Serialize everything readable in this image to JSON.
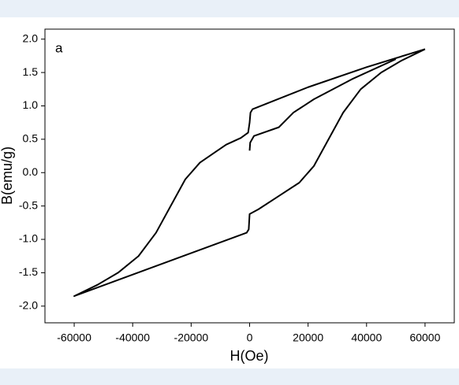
{
  "chart_data": {
    "type": "line",
    "annotation": "a",
    "x_label": "H(Oe)",
    "y_label": "B(emu/g)",
    "xlim": [
      -70000,
      70000
    ],
    "ylim": [
      -2.25,
      2.15
    ],
    "xticks": [
      -60000,
      -40000,
      -20000,
      0,
      20000,
      40000,
      60000
    ],
    "yticks": [
      {
        "value": 2.0,
        "label": "2.0"
      },
      {
        "value": 1.5,
        "label": "1.5"
      },
      {
        "value": 1.0,
        "label": "1.0"
      },
      {
        "value": 0.5,
        "label": "0.5"
      },
      {
        "value": 0.0,
        "label": "0.0"
      },
      {
        "value": -0.5,
        "label": "-0.5"
      },
      {
        "value": -1.0,
        "label": "-1.0"
      },
      {
        "value": -1.5,
        "label": "-1.5"
      },
      {
        "value": -2.0,
        "label": "-2.0"
      }
    ],
    "series": [
      {
        "color": "#000000",
        "x": [
          60000,
          40000,
          20000,
          5000,
          1000,
          300,
          0,
          -500,
          -3000,
          -8000,
          -12000,
          -17000,
          -22000,
          -27000,
          -32000,
          -38000,
          -45000,
          -52000,
          -60000,
          -1000,
          -300,
          0,
          3000,
          10000,
          17000,
          22000,
          27000,
          32000,
          38000,
          45000,
          52000,
          60000
        ],
        "values": [
          1.85,
          1.58,
          1.28,
          1.02,
          0.95,
          0.9,
          0.75,
          0.6,
          0.52,
          0.42,
          0.3,
          0.15,
          -0.1,
          -0.5,
          -0.9,
          -1.25,
          -1.5,
          -1.68,
          -1.85,
          -0.9,
          -0.85,
          -0.62,
          -0.55,
          -0.35,
          -0.15,
          0.1,
          0.5,
          0.9,
          1.25,
          1.5,
          1.68,
          1.85
        ]
      },
      {
        "color": "#000000",
        "x": [
          0,
          200,
          1500,
          10000,
          15000,
          22000,
          35000,
          50000
        ],
        "values": [
          0.33,
          0.45,
          0.55,
          0.68,
          0.9,
          1.1,
          1.4,
          1.7
        ]
      }
    ]
  }
}
